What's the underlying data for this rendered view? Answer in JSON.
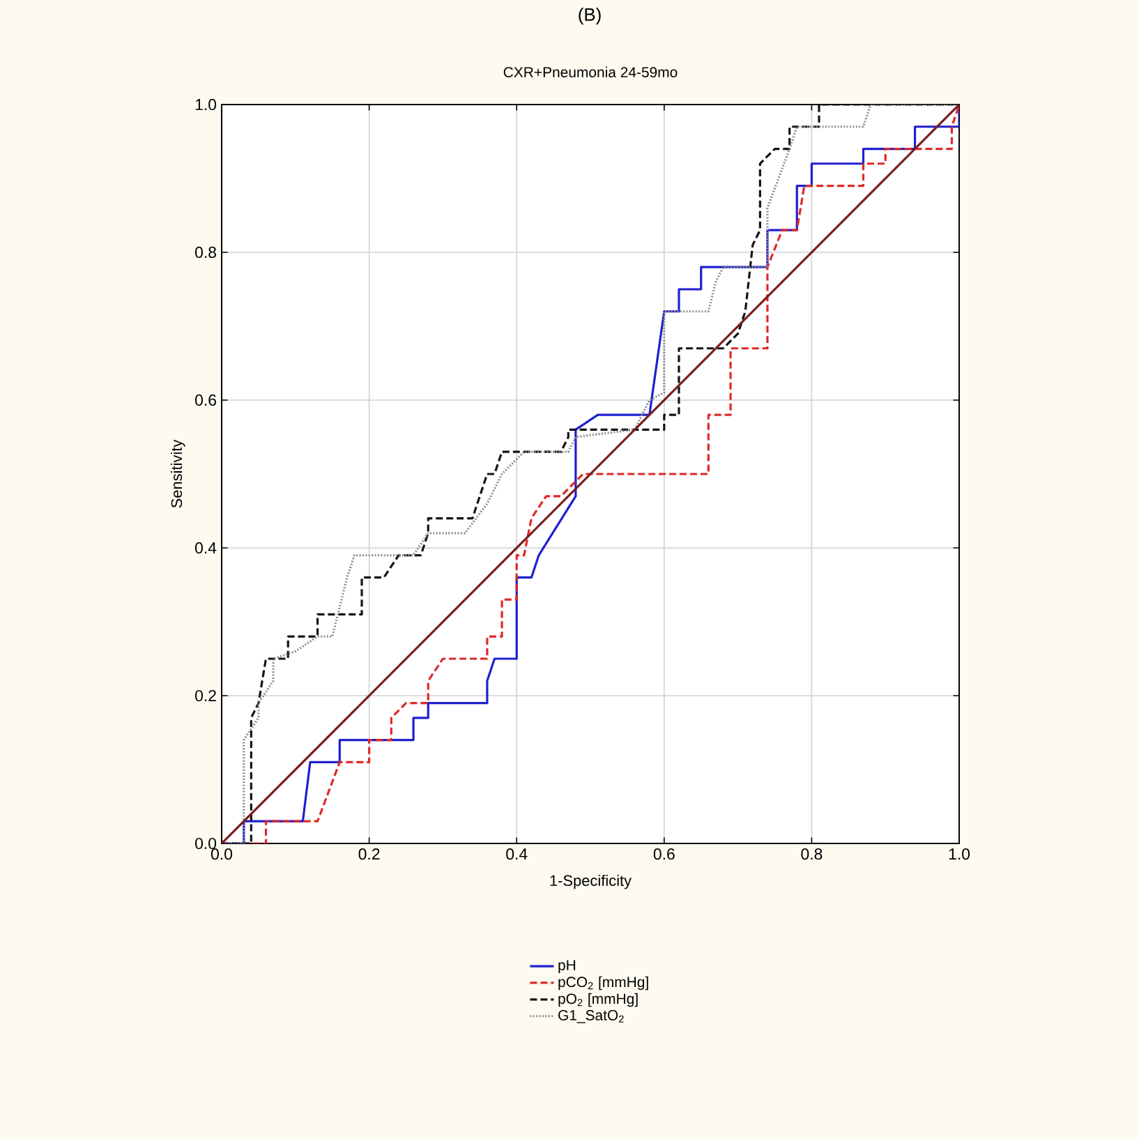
{
  "chart_data": {
    "type": "line",
    "title": "CXR+Pneumonia 24-59mo",
    "xlabel": "1-Specificity",
    "ylabel": "Sensitivity",
    "annotations": [
      "(B)"
    ],
    "xlim": [
      0,
      1
    ],
    "ylim": [
      0,
      1
    ],
    "xticks": [
      {
        "value": 0,
        "label": "0.0"
      },
      {
        "value": 0.2,
        "label": "0.2"
      },
      {
        "value": 0.4,
        "label": "0.4"
      },
      {
        "value": 0.6,
        "label": "0.6"
      },
      {
        "value": 0.8,
        "label": "0.8"
      },
      {
        "value": 1,
        "label": "1.0"
      }
    ],
    "yticks": [
      {
        "value": 0,
        "label": "0.0"
      },
      {
        "value": 0.2,
        "label": "0.2"
      },
      {
        "value": 0.4,
        "label": "0.4"
      },
      {
        "value": 0.6,
        "label": "0.6"
      },
      {
        "value": 0.8,
        "label": "0.8"
      },
      {
        "value": 1,
        "label": "1.0"
      }
    ],
    "grid": true,
    "legend": "bottom",
    "series": [
      {
        "name": "pH",
        "color": "#1f1fd0",
        "line_style": "solid",
        "x": [
          0,
          0.03,
          0.03,
          0.11,
          0.12,
          0.16,
          0.16,
          0.26,
          0.26,
          0.28,
          0.28,
          0.36,
          0.36,
          0.37,
          0.4,
          0.4,
          0.42,
          0.43,
          0.48,
          0.48,
          0.51,
          0.58,
          0.6,
          0.62,
          0.62,
          0.65,
          0.65,
          0.74,
          0.74,
          0.78,
          0.78,
          0.8,
          0.8,
          0.87,
          0.87,
          0.94,
          0.94,
          1.0,
          1.0
        ],
        "values": [
          0,
          0,
          0.03,
          0.03,
          0.11,
          0.11,
          0.14,
          0.14,
          0.17,
          0.17,
          0.19,
          0.19,
          0.22,
          0.25,
          0.25,
          0.36,
          0.36,
          0.39,
          0.47,
          0.56,
          0.58,
          0.58,
          0.72,
          0.72,
          0.75,
          0.75,
          0.78,
          0.78,
          0.83,
          0.83,
          0.89,
          0.89,
          0.92,
          0.92,
          0.94,
          0.94,
          0.97,
          0.97,
          1.0
        ]
      },
      {
        "name": "pCO$_{2}$ [mmHg]",
        "color": "#e02828",
        "line_style": "dashed",
        "x": [
          0,
          0.06,
          0.06,
          0.13,
          0.16,
          0.2,
          0.2,
          0.23,
          0.23,
          0.25,
          0.28,
          0.28,
          0.3,
          0.36,
          0.36,
          0.38,
          0.38,
          0.4,
          0.4,
          0.41,
          0.42,
          0.44,
          0.46,
          0.49,
          0.66,
          0.66,
          0.69,
          0.69,
          0.74,
          0.74,
          0.76,
          0.78,
          0.79,
          0.87,
          0.87,
          0.9,
          0.9,
          0.99,
          0.99,
          1.0
        ],
        "values": [
          0,
          0,
          0.03,
          0.03,
          0.11,
          0.11,
          0.14,
          0.14,
          0.17,
          0.19,
          0.19,
          0.22,
          0.25,
          0.25,
          0.28,
          0.28,
          0.33,
          0.33,
          0.39,
          0.39,
          0.44,
          0.47,
          0.47,
          0.5,
          0.5,
          0.58,
          0.58,
          0.67,
          0.67,
          0.78,
          0.83,
          0.83,
          0.89,
          0.89,
          0.92,
          0.92,
          0.94,
          0.94,
          0.97,
          1.0
        ]
      },
      {
        "name": "pO$_{2}$ [mmHg]",
        "color": "#141414",
        "line_style": "dashed",
        "x": [
          0,
          0.04,
          0.04,
          0.05,
          0.06,
          0.09,
          0.09,
          0.13,
          0.13,
          0.17,
          0.19,
          0.19,
          0.22,
          0.24,
          0.27,
          0.28,
          0.28,
          0.34,
          0.35,
          0.36,
          0.37,
          0.38,
          0.46,
          0.47,
          0.47,
          0.6,
          0.6,
          0.62,
          0.62,
          0.68,
          0.7,
          0.71,
          0.72,
          0.73,
          0.73,
          0.75,
          0.77,
          0.77,
          0.81,
          0.81,
          1.0
        ],
        "values": [
          0,
          0,
          0.17,
          0.19,
          0.25,
          0.25,
          0.28,
          0.28,
          0.31,
          0.31,
          0.31,
          0.36,
          0.36,
          0.39,
          0.39,
          0.42,
          0.44,
          0.44,
          0.47,
          0.5,
          0.5,
          0.53,
          0.53,
          0.55,
          0.56,
          0.56,
          0.58,
          0.58,
          0.67,
          0.67,
          0.69,
          0.72,
          0.81,
          0.83,
          0.92,
          0.94,
          0.94,
          0.97,
          0.97,
          1.0,
          1.0
        ]
      },
      {
        "name": "G1_SatO$_{2}$",
        "color": "#8c8c8c",
        "line_style": "dotted",
        "x": [
          0,
          0.03,
          0.03,
          0.05,
          0.05,
          0.07,
          0.07,
          0.1,
          0.13,
          0.15,
          0.17,
          0.18,
          0.26,
          0.28,
          0.33,
          0.36,
          0.38,
          0.41,
          0.47,
          0.48,
          0.56,
          0.58,
          0.6,
          0.6,
          0.66,
          0.67,
          0.68,
          0.74,
          0.74,
          0.77,
          0.78,
          0.87,
          0.88,
          1.0
        ],
        "values": [
          0,
          0,
          0.14,
          0.17,
          0.19,
          0.22,
          0.25,
          0.26,
          0.28,
          0.28,
          0.36,
          0.39,
          0.39,
          0.42,
          0.42,
          0.46,
          0.5,
          0.53,
          0.53,
          0.55,
          0.56,
          0.6,
          0.61,
          0.72,
          0.72,
          0.76,
          0.78,
          0.78,
          0.86,
          0.94,
          0.97,
          0.97,
          1.0,
          1.0
        ]
      },
      {
        "color": "#7a1c1c",
        "line_style": "solid",
        "x": [
          0,
          1
        ],
        "values": [
          0,
          1
        ]
      }
    ]
  }
}
